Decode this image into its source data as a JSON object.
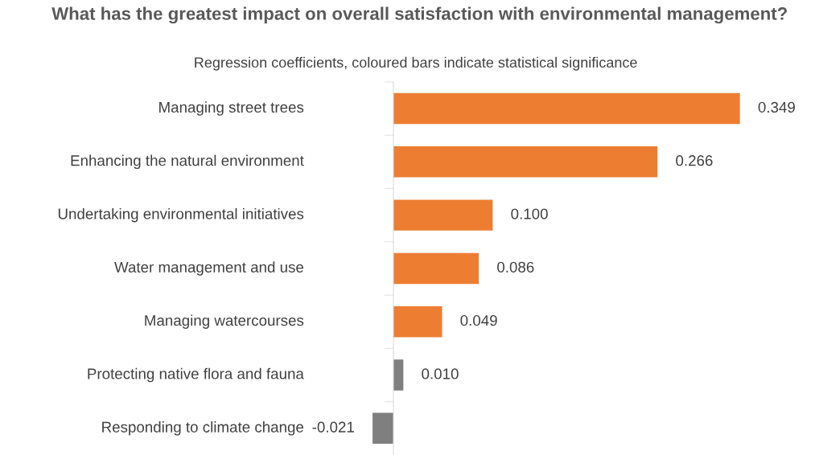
{
  "chart_data": {
    "type": "bar",
    "orientation": "horizontal",
    "title": "What has the greatest impact on overall satisfaction with environmental management?",
    "subtitle": "Regression coefficients, coloured bars indicate statistical significance",
    "categories": [
      "Managing street trees",
      "Enhancing the natural environment",
      "Undertaking environmental initiatives",
      "Water management and use",
      "Managing watercourses",
      "Protecting native flora and fauna",
      "Responding to climate change"
    ],
    "values": [
      0.349,
      0.266,
      0.1,
      0.086,
      0.049,
      0.01,
      -0.021
    ],
    "value_labels": [
      "0.349",
      "0.266",
      "0.100",
      "0.086",
      "0.049",
      "0.010",
      "-0.021"
    ],
    "colors": [
      "#ed7d31",
      "#ed7d31",
      "#ed7d31",
      "#ed7d31",
      "#ed7d31",
      "#7f7f7f",
      "#7f7f7f"
    ],
    "tick_labels": "y"
  }
}
